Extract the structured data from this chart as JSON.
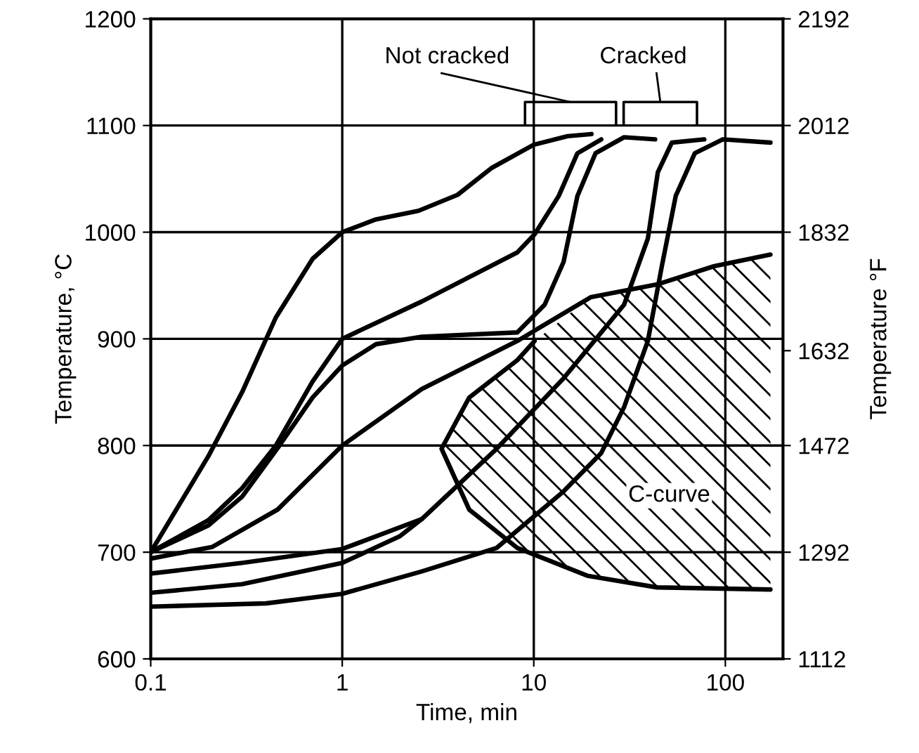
{
  "chart_data": {
    "type": "line",
    "xlabel": "Time, min",
    "ylabel": "Temperature, °C",
    "y2label": "Temperature °F",
    "log": "x",
    "xlim": [
      0.1,
      200
    ],
    "xticks": [
      0.1,
      1,
      10,
      100
    ],
    "ylim": [
      600,
      1200
    ],
    "yticks": [
      600,
      700,
      800,
      900,
      1000,
      1100,
      1200
    ],
    "y2lim": [
      1112,
      2192
    ],
    "y2ticks": [
      1112,
      1292,
      1472,
      1632,
      1832,
      2012,
      2192
    ],
    "grid": true,
    "marker": "none",
    "line_style": "solid",
    "series": [
      {
        "color": "#000000",
        "x": [
          0.1,
          0.2,
          0.3,
          0.45,
          0.7,
          1,
          1.5,
          2.5,
          4,
          6,
          10,
          15,
          20
        ],
        "values": [
          700,
          790,
          850,
          920,
          975,
          1000,
          1012,
          1020,
          1035,
          1060,
          1082,
          1090,
          1092
        ]
      },
      {
        "color": "#000000",
        "x": [
          0.1,
          0.2,
          0.3,
          0.45,
          0.7,
          1,
          2.6,
          8.2,
          10.1,
          13.5,
          16.9,
          22.5
        ],
        "values": [
          700,
          730,
          760,
          800,
          860,
          900,
          935,
          981,
          998,
          1034,
          1074,
          1087
        ]
      },
      {
        "color": "#000000",
        "x": [
          0.1,
          0.2,
          0.3,
          0.47,
          0.7,
          1,
          1.5,
          2.6,
          8.2,
          11.4,
          14.3,
          16.9,
          21,
          29.6,
          43
        ],
        "values": [
          700,
          725,
          752,
          800,
          845,
          875,
          895,
          902,
          906,
          932,
          972,
          1034,
          1074,
          1089,
          1087
        ]
      },
      {
        "color": "#000000",
        "x": [
          0.1,
          0.21,
          0.46,
          1,
          2.6,
          8.2,
          19.8,
          44,
          87,
          172
        ],
        "values": [
          694,
          705,
          740,
          800,
          853,
          898,
          939,
          951,
          968,
          979
        ]
      },
      {
        "color": "#000000",
        "x": [
          0.1,
          0.3,
          1,
          2.6,
          6.4,
          14.3,
          29.6,
          39.4,
          44.4,
          52.6,
          77.6
        ],
        "values": [
          680,
          690,
          703,
          731,
          797,
          863,
          932,
          994,
          1056,
          1084,
          1087
        ]
      },
      {
        "color": "#000000",
        "x": [
          0.1,
          0.3,
          1,
          2,
          2.6
        ],
        "values": [
          662,
          670,
          690,
          715,
          731
        ]
      },
      {
        "color": "#000000",
        "x": [
          0.1,
          0.4,
          1,
          2.6,
          6.4,
          14.3,
          22.5,
          29.6,
          39.4,
          46.6,
          55.1,
          69.3,
          97,
          172
        ],
        "values": [
          649,
          652,
          661,
          682,
          704,
          757,
          793,
          836,
          898,
          968,
          1034,
          1074,
          1087,
          1084
        ]
      },
      {
        "color": "#000000",
        "x": [
          10.1,
          8.2,
          4.6,
          3.3,
          4.6,
          8.2,
          19,
          44,
          172
        ],
        "values": [
          898,
          880,
          845,
          797,
          740,
          704,
          678,
          667,
          665
        ]
      }
    ],
    "annotations": [
      "Not cracked",
      "Cracked",
      "C-curve"
    ]
  }
}
